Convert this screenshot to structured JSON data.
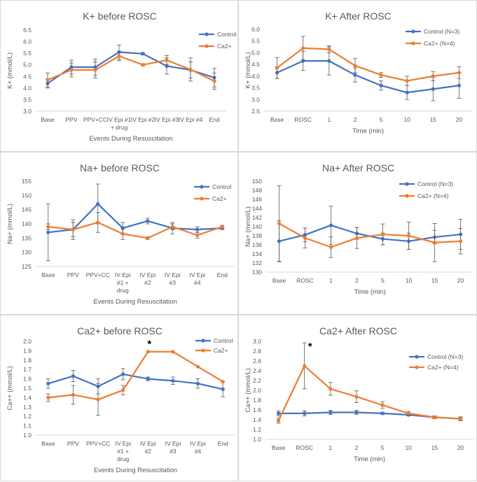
{
  "colors": {
    "control": "#4472C4",
    "ca2": "#ED7D31",
    "error": "#595959"
  },
  "chart_data": [
    {
      "type": "line",
      "title": "K+ before ROSC",
      "xlabel": "Events During Resuscitation",
      "ylabel": "K+ (mmol/L)",
      "categories": [
        [
          "Base"
        ],
        [
          "PPV"
        ],
        [
          "PPV+CC"
        ],
        [
          "IV Epi #1",
          "+ drug"
        ],
        [
          "IV Epi #2"
        ],
        [
          "IV Epi #3"
        ],
        [
          "IV Epi #4"
        ],
        [
          "End"
        ]
      ],
      "ylim": [
        3,
        6.5
      ],
      "ytick_step": 0.5,
      "ytick_decimals": 1,
      "legend_position": "top-right",
      "series": [
        {
          "name": "Control",
          "values": [
            4.2,
            4.9,
            4.9,
            5.55,
            5.48,
            4.95,
            4.78,
            4.45
          ],
          "err": [
            0.2,
            0.3,
            0.35,
            0.3,
            0.05,
            0.35,
            0.35,
            0.4
          ]
        },
        {
          "name": "Ca2+",
          "values": [
            4.35,
            4.78,
            4.78,
            5.38,
            5.0,
            5.2,
            4.8,
            4.3
          ],
          "err": [
            0.3,
            0.3,
            0.35,
            0.2,
            0.05,
            0.2,
            0.5,
            0.35
          ]
        }
      ]
    },
    {
      "type": "line",
      "title": "K+ After ROSC",
      "xlabel": "Time (min)",
      "ylabel": "K+ (mmol/L)",
      "categories": [
        [
          "Base"
        ],
        [
          "ROSC"
        ],
        [
          "1"
        ],
        [
          "2"
        ],
        [
          "5"
        ],
        [
          "10"
        ],
        [
          "15"
        ],
        [
          "20"
        ]
      ],
      "ylim": [
        2.5,
        6
      ],
      "ytick_step": 0.5,
      "ytick_decimals": 1,
      "legend_position": "top-right",
      "series": [
        {
          "name": "Control (N=3)",
          "values": [
            4.15,
            4.65,
            4.65,
            4.05,
            3.6,
            3.3,
            3.45,
            3.6
          ],
          "err": [
            0.25,
            0.4,
            0.6,
            0.3,
            0.2,
            0.3,
            0.5,
            0.55
          ]
        },
        {
          "name": "Ca2+ (N=4)",
          "values": [
            4.35,
            5.2,
            5.15,
            4.45,
            4.05,
            3.8,
            4.0,
            4.15
          ],
          "err": [
            0.45,
            0.5,
            0.15,
            0.3,
            0.1,
            0.2,
            0.2,
            0.25
          ]
        }
      ]
    },
    {
      "type": "line",
      "title": "Na+ before ROSC",
      "xlabel": "Events During Resuscitation",
      "ylabel": "Na+ (mmol/L)",
      "categories": [
        [
          "Base"
        ],
        [
          "PPV"
        ],
        [
          "PPV+CC"
        ],
        [
          "IV Epi",
          "#1 +",
          "drug"
        ],
        [
          "IV Epi",
          "#2"
        ],
        [
          "IV Epi",
          "#3"
        ],
        [
          "IV Epi",
          "#4"
        ],
        [
          "End"
        ]
      ],
      "ylim": [
        125,
        155
      ],
      "ytick_step": 5,
      "ytick_decimals": 0,
      "legend_position": "top-right",
      "series": [
        {
          "name": "Control",
          "values": [
            137,
            138,
            147,
            138.5,
            141,
            138.5,
            138,
            138.5
          ],
          "err": [
            10,
            3.5,
            7,
            2,
            1,
            2,
            1,
            0.5
          ]
        },
        {
          "name": "Ca2+",
          "values": [
            139,
            138,
            140.5,
            136.5,
            135,
            139,
            136,
            139
          ],
          "err": [
            1,
            2.5,
            3.5,
            2,
            0.5,
            1,
            1,
            0.5
          ]
        }
      ]
    },
    {
      "type": "line",
      "title": "Na+ After ROSC",
      "xlabel": "Time (min)",
      "ylabel": "Na+ (mmol/L)",
      "categories": [
        [
          "Base"
        ],
        [
          "ROSC"
        ],
        [
          "1"
        ],
        [
          "2"
        ],
        [
          "5"
        ],
        [
          "10"
        ],
        [
          "15"
        ],
        [
          "20"
        ]
      ],
      "ylim": [
        130,
        150
      ],
      "ytick_step": 2,
      "ytick_decimals": 0,
      "legend_position": "top-right",
      "series": [
        {
          "name": "Control (N=3)",
          "values": [
            136.8,
            138.2,
            140.3,
            138.5,
            137.3,
            136.8,
            137.7,
            138.3
          ],
          "err": [
            4.5,
            1.5,
            4.2,
            1.3,
            1.3,
            1.8,
            1.5,
            3.3
          ]
        },
        {
          "name": "Ca2+ (N=4)",
          "values": [
            140.7,
            137.5,
            135.5,
            137.5,
            138.3,
            138,
            136.5,
            136.8
          ],
          "err": [
            8.3,
            2.2,
            2.3,
            2.3,
            2.3,
            3,
            4.2,
            2.8
          ]
        }
      ]
    },
    {
      "type": "line",
      "title": "Ca2+ before ROSC",
      "xlabel": "Events During Resuscitation",
      "ylabel": "Ca++ (mmol/L)",
      "categories": [
        [
          "Base"
        ],
        [
          "PPV"
        ],
        [
          "PPV+CC"
        ],
        [
          "IV Epi",
          "#1 +",
          "drug"
        ],
        [
          "IV Epi",
          "#2"
        ],
        [
          "IV Epi",
          "#3"
        ],
        [
          "IV Epi",
          "#4"
        ],
        [
          "End"
        ]
      ],
      "ylim": [
        1,
        2
      ],
      "ytick_step": 0.1,
      "ytick_decimals": 1,
      "legend_position": "top-right",
      "annotations": [
        {
          "text": "*",
          "category_index": 4
        }
      ],
      "series": [
        {
          "name": "Control",
          "values": [
            1.55,
            1.63,
            1.52,
            1.65,
            1.6,
            1.58,
            1.55,
            1.49
          ],
          "err": [
            0.05,
            0.06,
            0.08,
            0.06,
            0.02,
            0.04,
            0.05,
            0.08
          ]
        },
        {
          "name": "Ca2+",
          "values": [
            1.4,
            1.43,
            1.38,
            1.48,
            1.89,
            1.89,
            1.73,
            1.57
          ],
          "err": [
            0.04,
            0.1,
            0.17,
            0.05,
            0.0,
            0.0,
            0.0,
            0.0
          ]
        }
      ]
    },
    {
      "type": "line",
      "title": "Ca2+ After ROSC",
      "xlabel": "Time (min)",
      "ylabel": "Ca++ (mmol/L)",
      "categories": [
        [
          "Base"
        ],
        [
          "ROSC"
        ],
        [
          "1"
        ],
        [
          "2"
        ],
        [
          "5"
        ],
        [
          "10"
        ],
        [
          "15"
        ],
        [
          "20"
        ]
      ],
      "ylim": [
        1,
        3
      ],
      "ytick_step": 0.2,
      "ytick_decimals": 1,
      "legend_position": "right",
      "annotations": [
        {
          "text": "*",
          "category_index": 1
        }
      ],
      "series": [
        {
          "name": "Control (N=3)",
          "values": [
            1.53,
            1.53,
            1.55,
            1.55,
            1.53,
            1.5,
            1.45,
            1.42
          ],
          "err": [
            0.05,
            0.05,
            0.04,
            0.04,
            0.02,
            0.02,
            0.02,
            0.03
          ]
        },
        {
          "name": "Ca2+ (N=4)",
          "values": [
            1.38,
            2.5,
            2.03,
            1.87,
            1.7,
            1.53,
            1.45,
            1.42
          ],
          "err": [
            0.05,
            0.47,
            0.13,
            0.12,
            0.07,
            0.04,
            0.03,
            0.04
          ]
        }
      ]
    }
  ]
}
